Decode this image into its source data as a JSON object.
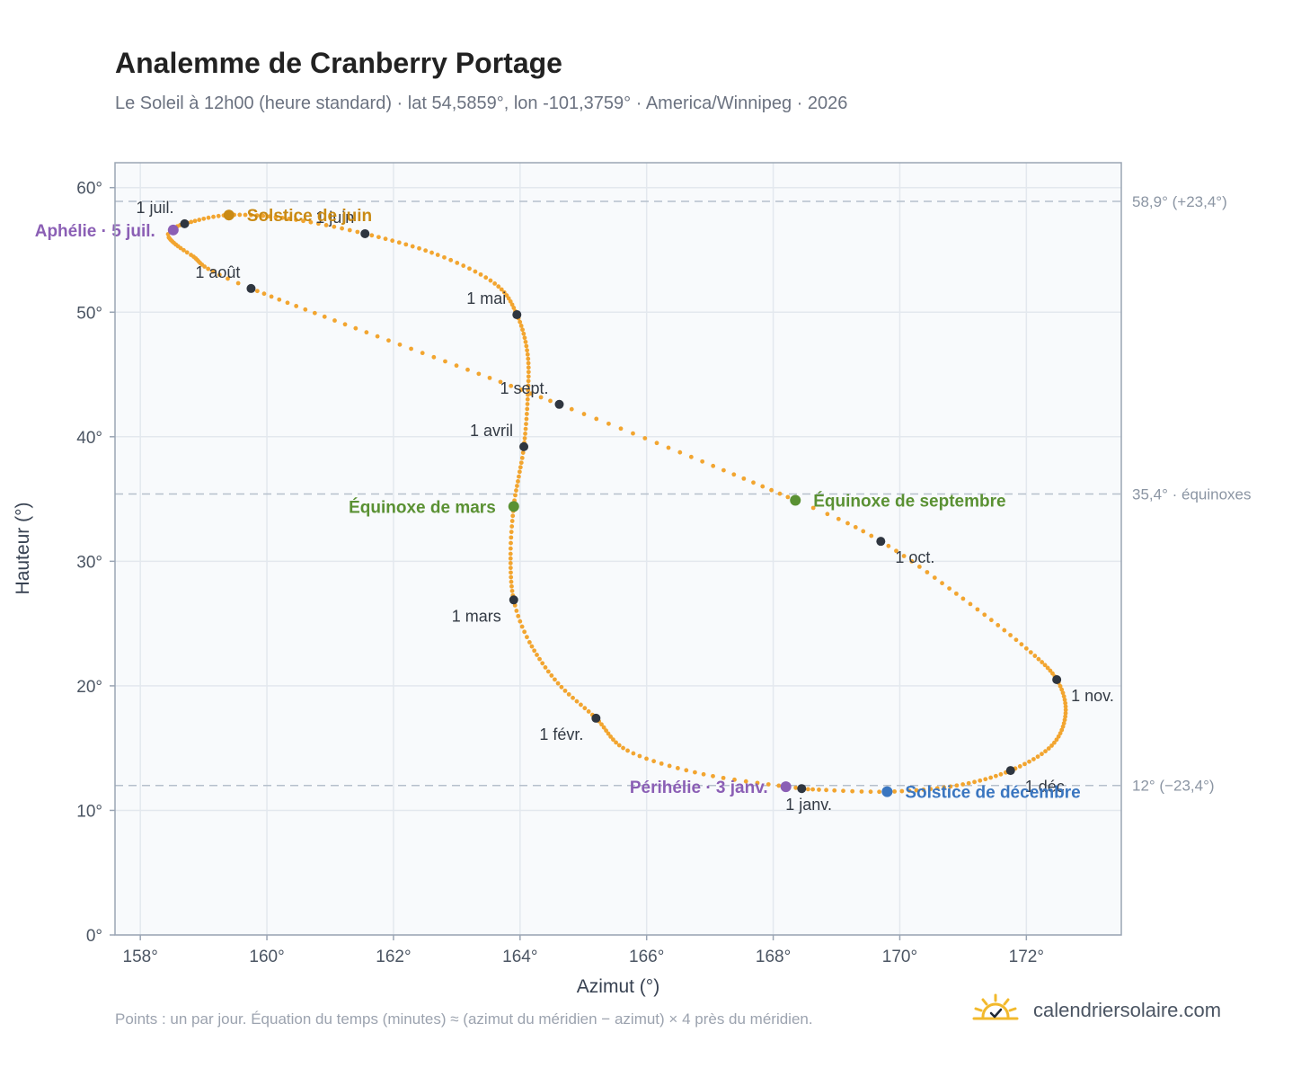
{
  "title": "Analemme de Cranberry Portage",
  "subtitle": "Le Soleil à 12h00 (heure standard) · lat 54,5859°, lon -101,3759° · America/Winnipeg · 2026",
  "footnote": "Points : un par jour. Équation du temps (minutes) ≈ (azimut du méridien − azimut) × 4 près du méridien.",
  "brand": {
    "name": "calendriersolaire.com",
    "icon": "sun-check-icon"
  },
  "colors": {
    "curve": "#f2a530",
    "month_dot": "#2f3640",
    "solstice_june": "#c98a14",
    "solstice_december": "#3a76c0",
    "equinox": "#5a9133",
    "apsis": "#8b5fb5",
    "reference": "#b6c0cc",
    "plot_bg": "#f8fafc",
    "grid": "#e3e8ee",
    "frame": "#9aa5b4"
  },
  "chart_data": {
    "type": "scatter",
    "title": "Analemme de Cranberry Portage",
    "xlabel": "Azimut (°)",
    "ylabel": "Hauteur (°)",
    "xlim": [
      157.6,
      173.5
    ],
    "ylim": [
      0,
      62
    ],
    "x_ticks": [
      158,
      160,
      162,
      164,
      166,
      168,
      170,
      172
    ],
    "x_tick_labels": [
      "158°",
      "160°",
      "162°",
      "164°",
      "166°",
      "168°",
      "170°",
      "172°"
    ],
    "y_ticks": [
      0,
      10,
      20,
      30,
      40,
      50,
      60
    ],
    "y_tick_labels": [
      "0°",
      "10°",
      "20°",
      "30°",
      "40°",
      "50°",
      "60°"
    ],
    "grid": true,
    "legend": "none",
    "reference_lines": [
      {
        "y": 58.9,
        "label": "58,9° (+23,4°)"
      },
      {
        "y": 35.4,
        "label": "35,4° · équinoxes"
      },
      {
        "y": 12.0,
        "label": "12° (−23,4°)"
      }
    ],
    "daily_path": [
      {
        "doy": 1,
        "x": 168.45,
        "y": 11.75
      },
      {
        "doy": 11,
        "x": 166.9,
        "y": 12.9
      },
      {
        "doy": 21,
        "x": 165.7,
        "y": 14.8
      },
      {
        "doy": 32,
        "x": 165.2,
        "y": 17.4
      },
      {
        "doy": 42,
        "x": 164.6,
        "y": 20.2
      },
      {
        "doy": 52,
        "x": 164.15,
        "y": 23.5
      },
      {
        "doy": 60,
        "x": 163.9,
        "y": 26.9
      },
      {
        "doy": 70,
        "x": 163.85,
        "y": 30.6
      },
      {
        "doy": 79,
        "x": 163.9,
        "y": 34.4
      },
      {
        "doy": 85,
        "x": 163.98,
        "y": 36.8
      },
      {
        "doy": 91,
        "x": 164.06,
        "y": 39.2
      },
      {
        "doy": 101,
        "x": 164.12,
        "y": 43.0
      },
      {
        "doy": 111,
        "x": 164.12,
        "y": 46.6
      },
      {
        "doy": 121,
        "x": 163.95,
        "y": 49.8
      },
      {
        "doy": 131,
        "x": 163.6,
        "y": 52.3
      },
      {
        "doy": 141,
        "x": 162.7,
        "y": 54.6
      },
      {
        "doy": 152,
        "x": 161.55,
        "y": 56.3
      },
      {
        "doy": 162,
        "x": 160.35,
        "y": 57.5
      },
      {
        "doy": 172,
        "x": 159.4,
        "y": 57.8
      },
      {
        "doy": 182,
        "x": 158.7,
        "y": 57.1
      },
      {
        "doy": 187,
        "x": 158.52,
        "y": 56.6
      },
      {
        "doy": 190,
        "x": 158.45,
        "y": 56.0
      },
      {
        "doy": 200,
        "x": 158.8,
        "y": 54.6
      },
      {
        "doy": 213,
        "x": 159.75,
        "y": 51.9
      },
      {
        "doy": 244,
        "x": 164.62,
        "y": 42.6
      },
      {
        "doy": 266,
        "x": 168.35,
        "y": 34.9
      },
      {
        "doy": 274,
        "x": 169.7,
        "y": 31.6
      },
      {
        "doy": 285,
        "x": 171.0,
        "y": 27.0
      },
      {
        "doy": 295,
        "x": 172.0,
        "y": 23.0
      },
      {
        "doy": 305,
        "x": 172.48,
        "y": 20.5
      },
      {
        "doy": 315,
        "x": 172.62,
        "y": 17.8
      },
      {
        "doy": 325,
        "x": 172.4,
        "y": 15.2
      },
      {
        "doy": 335,
        "x": 171.75,
        "y": 13.2
      },
      {
        "doy": 345,
        "x": 170.9,
        "y": 12.0
      },
      {
        "doy": 355,
        "x": 169.8,
        "y": 11.5
      },
      {
        "doy": 365,
        "x": 168.55,
        "y": 11.7
      }
    ],
    "month_markers": [
      {
        "label": "1 janv.",
        "x": 168.45,
        "y": 11.75,
        "pos": "below"
      },
      {
        "label": "1 févr.",
        "x": 165.2,
        "y": 17.4,
        "pos": "below-left"
      },
      {
        "label": "1 mars",
        "x": 163.9,
        "y": 26.9,
        "pos": "below-left"
      },
      {
        "label": "1 avril",
        "x": 164.06,
        "y": 39.2,
        "pos": "above-left"
      },
      {
        "label": "1 mai",
        "x": 163.95,
        "y": 49.8,
        "pos": "above-left"
      },
      {
        "label": "1 juin",
        "x": 161.55,
        "y": 56.3,
        "pos": "above-left"
      },
      {
        "label": "1 juil.",
        "x": 158.7,
        "y": 57.1,
        "pos": "above-left"
      },
      {
        "label": "1 août",
        "x": 159.75,
        "y": 51.9,
        "pos": "above-left"
      },
      {
        "label": "1 sept.",
        "x": 164.62,
        "y": 42.6,
        "pos": "above-left"
      },
      {
        "label": "1 oct.",
        "x": 169.7,
        "y": 31.6,
        "pos": "below-right"
      },
      {
        "label": "1 nov.",
        "x": 172.48,
        "y": 20.5,
        "pos": "below-right"
      },
      {
        "label": "1 déc.",
        "x": 171.75,
        "y": 13.2,
        "pos": "below-right"
      }
    ],
    "events": [
      {
        "label": "Solstice de juin",
        "x": 159.4,
        "y": 57.8,
        "color_key": "solstice_june",
        "side": "right"
      },
      {
        "label": "Aphélie · 5 juil.",
        "x": 158.52,
        "y": 56.6,
        "color_key": "apsis",
        "side": "left"
      },
      {
        "label": "Équinoxe de mars",
        "x": 163.9,
        "y": 34.4,
        "color_key": "equinox",
        "side": "left"
      },
      {
        "label": "Équinoxe de septembre",
        "x": 168.35,
        "y": 34.9,
        "color_key": "equinox",
        "side": "right"
      },
      {
        "label": "Périhélie · 3 janv.",
        "x": 168.2,
        "y": 11.9,
        "color_key": "apsis",
        "side": "left"
      },
      {
        "label": "Solstice de décembre",
        "x": 169.8,
        "y": 11.5,
        "color_key": "solstice_december",
        "side": "right"
      }
    ]
  }
}
